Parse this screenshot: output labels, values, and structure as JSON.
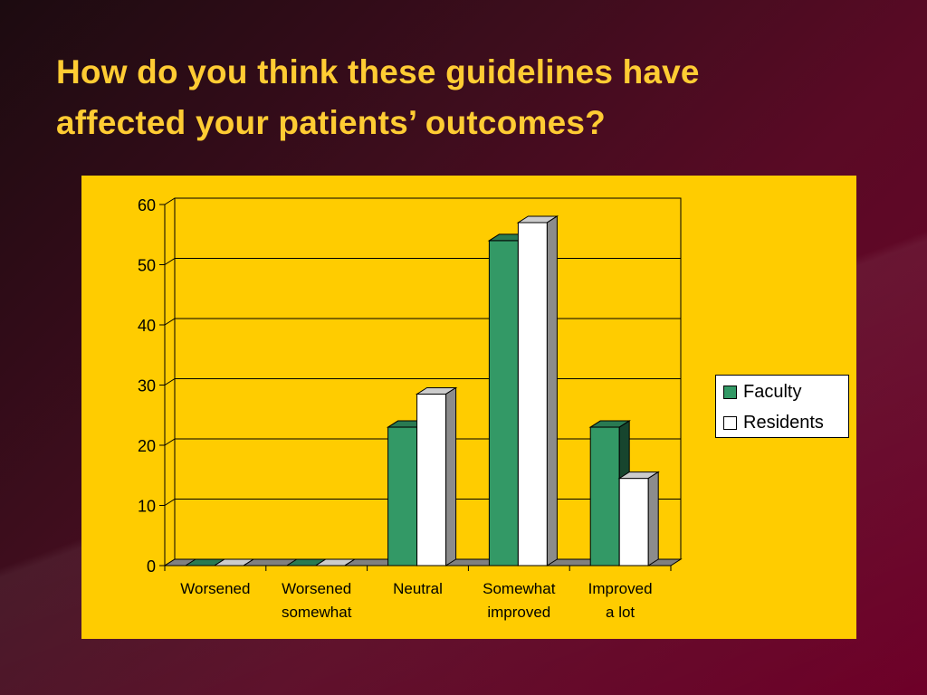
{
  "slide": {
    "title_line1": "How do you think these guidelines have",
    "title_line2": "affected your patients’ outcomes?"
  },
  "colors": {
    "panel": "#ffcc00",
    "faculty": "#339966",
    "residents": "#ffffff",
    "title": "#ffcc33"
  },
  "chart_data": {
    "type": "bar",
    "style": "3d-clustered",
    "categories": [
      [
        "Worsened"
      ],
      [
        "Worsened",
        "somewhat"
      ],
      [
        "Neutral"
      ],
      [
        "Somewhat",
        "improved"
      ],
      [
        "Improved",
        "a lot"
      ]
    ],
    "series": [
      {
        "name": "Faculty",
        "color": "#339966",
        "values": [
          0,
          0,
          23,
          54,
          23
        ]
      },
      {
        "name": "Residents",
        "color": "#ffffff",
        "values": [
          0,
          0,
          28.5,
          57,
          14.5
        ]
      }
    ],
    "yticks": [
      0,
      10,
      20,
      30,
      40,
      50,
      60
    ],
    "ylim": [
      0,
      60
    ],
    "grid": true,
    "legend": "right"
  }
}
